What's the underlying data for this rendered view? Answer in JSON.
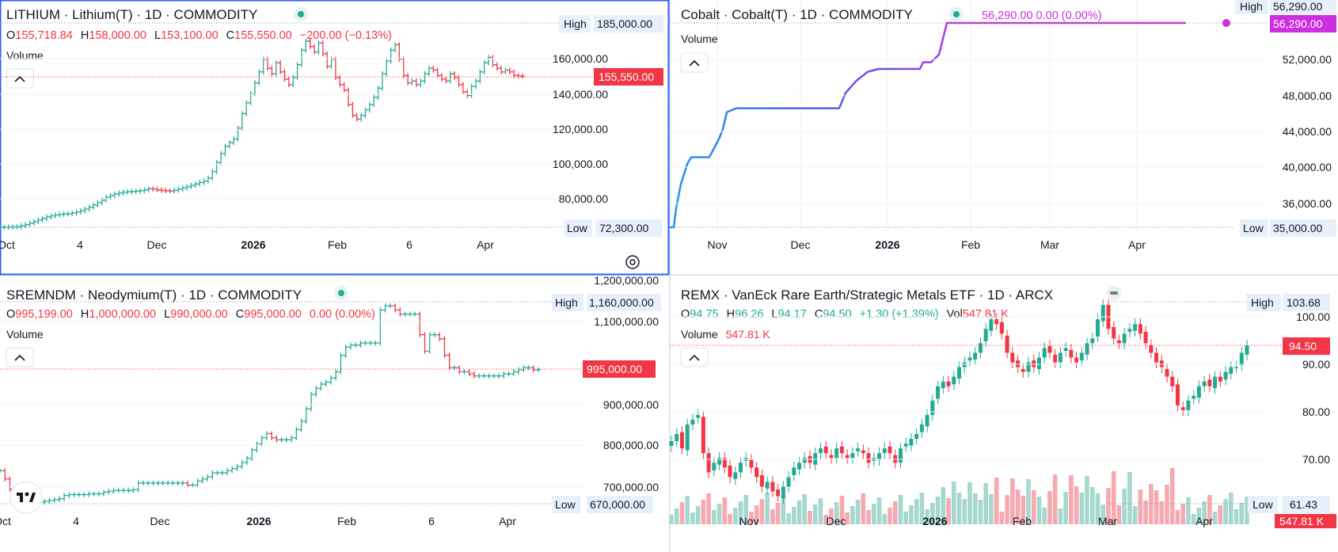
{
  "colors": {
    "up": "#22ab94",
    "down": "#f23645",
    "cobalt_line": "#2962ff",
    "cobalt_label": "#cc2fe0",
    "ma_blue": "#2962ff"
  },
  "chart_data": [
    {
      "type": "ohlc",
      "symbol": "LITHIUM",
      "title": "LITHIUM · Lithium(T) · 1D · COMMODITY",
      "ohlc": {
        "O": "155,718.84",
        "H": "158,000.00",
        "L": "153,100.00",
        "C": "155,550.00",
        "change": "−200.00 (−0.13%)"
      },
      "volume_label": "Volume",
      "last_price_label": "155,550.00",
      "high_label": "High",
      "high_value": "185,000.00",
      "low_label": "Low",
      "low_value": "72,300.00",
      "y_ticks": [
        "160,000.00",
        "140,000.00",
        "120,000.00",
        "100,000.00",
        "80,000.00"
      ],
      "y_tick_values": [
        160000,
        140000,
        120000,
        100000,
        80000
      ],
      "x_ticks": [
        "Oct",
        "4",
        "Dec",
        "2026",
        "Feb",
        "6",
        "Apr"
      ],
      "ylim": [
        72300,
        185000
      ],
      "closes": [
        72300,
        72300,
        72400,
        72500,
        72600,
        73200,
        73800,
        74600,
        75400,
        76300,
        77100,
        78000,
        78600,
        79100,
        79400,
        79600,
        79800,
        80200,
        80700,
        81400,
        82300,
        83400,
        84600,
        85900,
        87300,
        88800,
        89800,
        90600,
        91200,
        91700,
        91900,
        92000,
        92200,
        92500,
        93000,
        93500,
        93400,
        92900,
        92600,
        92400,
        92300,
        92700,
        93300,
        94000,
        94700,
        95400,
        96200,
        97000,
        97800,
        99500,
        103000,
        108000,
        113000,
        117000,
        119000,
        121000,
        127000,
        135000,
        141000,
        146000,
        152000,
        158000,
        165000,
        160000,
        157000,
        163000,
        158000,
        154000,
        151000,
        155000,
        162000,
        170000,
        175000,
        172000,
        169000,
        174000,
        168000,
        161000,
        165000,
        155000,
        151000,
        148000,
        140000,
        134000,
        132000,
        134000,
        137000,
        140000,
        144000,
        149000,
        157000,
        164000,
        170000,
        173000,
        165000,
        156000,
        152000,
        153000,
        151000,
        153000,
        157000,
        160000,
        159000,
        156000,
        154000,
        153000,
        157000,
        155000,
        151000,
        147000,
        145000,
        150000,
        153000,
        158000,
        163000,
        166000,
        162000,
        160000,
        158000,
        159000,
        158000,
        156000,
        155718,
        155550
      ]
    },
    {
      "type": "line",
      "symbol": "Cobalt",
      "title": "Cobalt · Cobalt(T) · 1D · COMMODITY",
      "header_value": "56,290.00  0.00 (0.00%)",
      "volume_label": "Volume",
      "last_price_label": "56,290.00",
      "high_label": "High",
      "high_value": "56,290.00",
      "low_label": "Low",
      "low_value": "35,000.00",
      "y_ticks": [
        "52,000.00",
        "48,000.00",
        "44,000.00",
        "40,000.00",
        "36,000.00"
      ],
      "y_tick_values": [
        52000,
        48000,
        44000,
        40000,
        36000
      ],
      "x_ticks": [
        "Nov",
        "Dec",
        "2026",
        "Feb",
        "Mar",
        "Apr"
      ],
      "ylim": [
        35000,
        56290
      ],
      "x": [
        0,
        5,
        8,
        14,
        22,
        27,
        36,
        50,
        62,
        67,
        72,
        84,
        93,
        104,
        124,
        132,
        152,
        162,
        170,
        178,
        190,
        200,
        214,
        222,
        236,
        250,
        264,
        275,
        285,
        302,
        316,
        320,
        330,
        340,
        350,
        600,
        652
      ],
      "values": [
        35000,
        35000,
        37000,
        39500,
        41600,
        42300,
        42300,
        42300,
        44200,
        45200,
        47000,
        47400,
        47400,
        47400,
        47400,
        47400,
        47400,
        47400,
        47400,
        47400,
        47400,
        47400,
        47400,
        49000,
        50300,
        51200,
        51500,
        51500,
        51500,
        51500,
        51500,
        52200,
        52200,
        53000,
        56290,
        56290,
        56290
      ]
    },
    {
      "type": "ohlc",
      "symbol": "SREMNDM",
      "title": "SREMNDM · Neodymium(T) · 1D · COMMODITY",
      "ohlc": {
        "O": "995,199.00",
        "H": "1,000,000.00",
        "L": "990,000.00",
        "C": "995,000.00",
        "change": "0.00 (0.00%)"
      },
      "volume_label": "Volume",
      "last_price_label": "995,000.00",
      "high_label": "High",
      "high_value": "1,160,000.00",
      "low_label": "Low",
      "low_value": "670,000.00",
      "y_ticks": [
        "1,200,000.00",
        "1,100,000.00",
        "900,000.00",
        "800,000.00",
        "700,000.00"
      ],
      "y_tick_values": [
        1200000,
        1100000,
        900000,
        800000,
        700000
      ],
      "x_ticks": [
        "Oct",
        "4",
        "Dec",
        "2026",
        "Feb",
        "6",
        "Apr"
      ],
      "ylim": [
        670000,
        1160000
      ],
      "closes": [
        750000,
        730000,
        705000,
        690000,
        680000,
        675000,
        670000,
        672000,
        674000,
        676000,
        678000,
        680000,
        682000,
        690000,
        692000,
        692000,
        692000,
        692000,
        694000,
        694000,
        694000,
        698000,
        700000,
        702000,
        702000,
        702000,
        702000,
        704000,
        720000,
        720000,
        720000,
        720000,
        720000,
        720000,
        720000,
        720000,
        720000,
        720000,
        715000,
        715000,
        725000,
        730000,
        735000,
        745000,
        745000,
        745000,
        750000,
        755000,
        760000,
        770000,
        780000,
        800000,
        815000,
        830000,
        840000,
        830000,
        825000,
        825000,
        825000,
        830000,
        850000,
        870000,
        900000,
        935000,
        950000,
        960000,
        965000,
        975000,
        990000,
        1030000,
        1050000,
        1055000,
        1055000,
        1060000,
        1060000,
        1060000,
        1060000,
        1140000,
        1150000,
        1150000,
        1140000,
        1130000,
        1130000,
        1130000,
        1130000,
        1080000,
        1040000,
        1080000,
        1080000,
        1070000,
        1030000,
        1000000,
        1000000,
        990000,
        990000,
        985000,
        980000,
        980000,
        980000,
        980000,
        980000,
        980000,
        985000,
        985000,
        990000,
        995000,
        1000000,
        1000000,
        995000,
        995000
      ]
    },
    {
      "type": "candlestick",
      "symbol": "REMX",
      "title": "REMX · VanEck Rare Earth/Strategic Metals ETF · 1D · ARCX",
      "ohlc": {
        "O": "94.75",
        "H": "96.26",
        "L": "94.17",
        "C": "94.50",
        "change": "+1.30 (+1.39%)",
        "vol_label": "Vol",
        "vol_value": "547.81 K"
      },
      "volume_label": "Volume",
      "volume_value": "547.81 K",
      "last_price_label": "94.50",
      "volume_badge": "547.81 K",
      "high_label": "High",
      "high_value": "103.68",
      "low_label": "Low",
      "low_value": "61.43",
      "y_ticks": [
        "100.00",
        "90.00",
        "80.00",
        "70.00"
      ],
      "y_tick_values": [
        100,
        90,
        80,
        70
      ],
      "x_ticks": [
        "Nov",
        "Dec",
        "2026",
        "Feb",
        "Mar",
        "Apr"
      ],
      "ylim": [
        61.43,
        103.68
      ],
      "closes": [
        74.5,
        76,
        73,
        78,
        79,
        80,
        72,
        68,
        70,
        71,
        69,
        67,
        68,
        70,
        71,
        69,
        67,
        65,
        66,
        64,
        63,
        65,
        67,
        69,
        70,
        71,
        70,
        72,
        73,
        72,
        71,
        73,
        72,
        71,
        72,
        73,
        72,
        70,
        71,
        72,
        73,
        72,
        70,
        73,
        74,
        75,
        76,
        78,
        80,
        83,
        86,
        87,
        86,
        88,
        90,
        91,
        92,
        93,
        95,
        98,
        100,
        99,
        97,
        93,
        91,
        90,
        89,
        91,
        90,
        92,
        94,
        93,
        91,
        93,
        94,
        92,
        91,
        93,
        95,
        96,
        100,
        103,
        98,
        96,
        95,
        97,
        98,
        99,
        97,
        95,
        93,
        91,
        90,
        88,
        86,
        82,
        81,
        83,
        84,
        86,
        87,
        86,
        88,
        87,
        89,
        90,
        90,
        93,
        94.5
      ]
    }
  ]
}
